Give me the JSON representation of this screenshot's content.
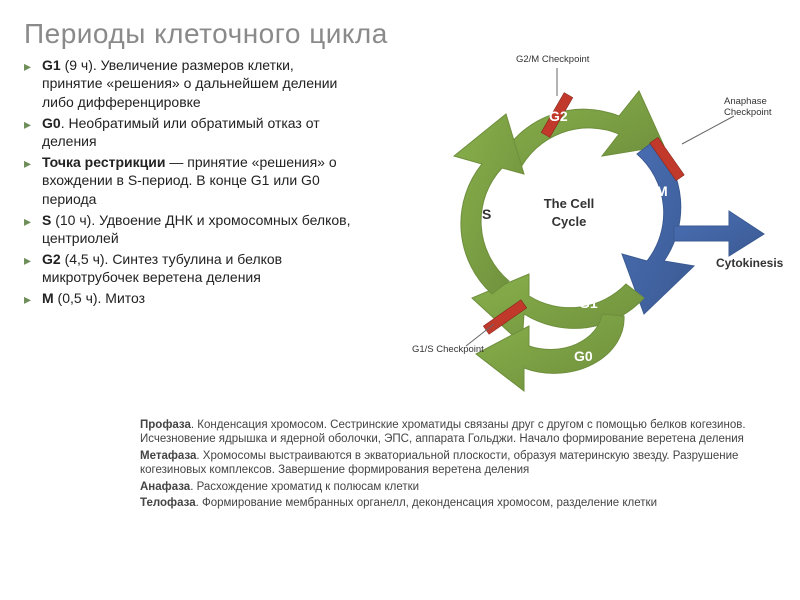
{
  "title": "Периоды клеточного цикла",
  "bullets": [
    {
      "bold": "G1",
      "rest": " (9 ч). Увеличение размеров клетки, принятие «решения» о дальнейшем делении либо дифференцировке"
    },
    {
      "bold": "G0",
      "rest": ". Необратимый или обратимый отказ от деления"
    },
    {
      "bold": "Точка рестрикции",
      "rest": " — принятие «решения» о вхождении в S-период. В конце G1 или G0 периода"
    },
    {
      "bold": "S",
      "rest": " (10 ч). Удвоение ДНК и хромосомных белков, центриолей"
    },
    {
      "bold": "G2",
      "rest": " (4,5 ч). Синтез тубулина и белков микротрубочек веретена деления"
    },
    {
      "bold": "M",
      "rest": " (0,5 ч). Митоз"
    }
  ],
  "notes": [
    {
      "bold": "Профаза",
      "rest": ". Конденсация хромосом. Сестринские хроматиды связаны друг с другом с помощью белков когезинов. Исчезновение ядрышка и ядерной оболочки, ЭПС, аппарата Гольджи. Начало формирование веретена деления"
    },
    {
      "bold": "Метафаза",
      "rest": ". Хромосомы выстраиваются в экваториальной плоскости, образуя материнскую звезду. Разрушение когезиновых комплексов. Завершение формирования веретена деления"
    },
    {
      "bold": "Анафаза",
      "rest": ". Расхождение хроматид к полюсам клетки"
    },
    {
      "bold": "Телофаза",
      "rest": ". Формирование мембранных органелл, деконденсация хромосом, разделение клетки"
    }
  ],
  "diagram": {
    "colors": {
      "green": "#88b04b",
      "green_dark": "#6e8e3c",
      "blue": "#4a6fb5",
      "blue_dark": "#3b5a92",
      "red": "#c0392b",
      "text_dark": "#333333",
      "white": "#ffffff",
      "gray_line": "#666666"
    },
    "phases": {
      "G2": "G2",
      "M": "M",
      "G1": "G1",
      "G0": "G0",
      "S": "S"
    },
    "center": {
      "l1": "The Cell",
      "l2": "Cycle"
    },
    "checkpoints": {
      "g2m": "G2/M Checkpoint",
      "anaphase": "Anaphase\nCheckpoint",
      "cytokinesis": "Cytokinesis",
      "g1s": "G1/S Checkpoint"
    }
  }
}
